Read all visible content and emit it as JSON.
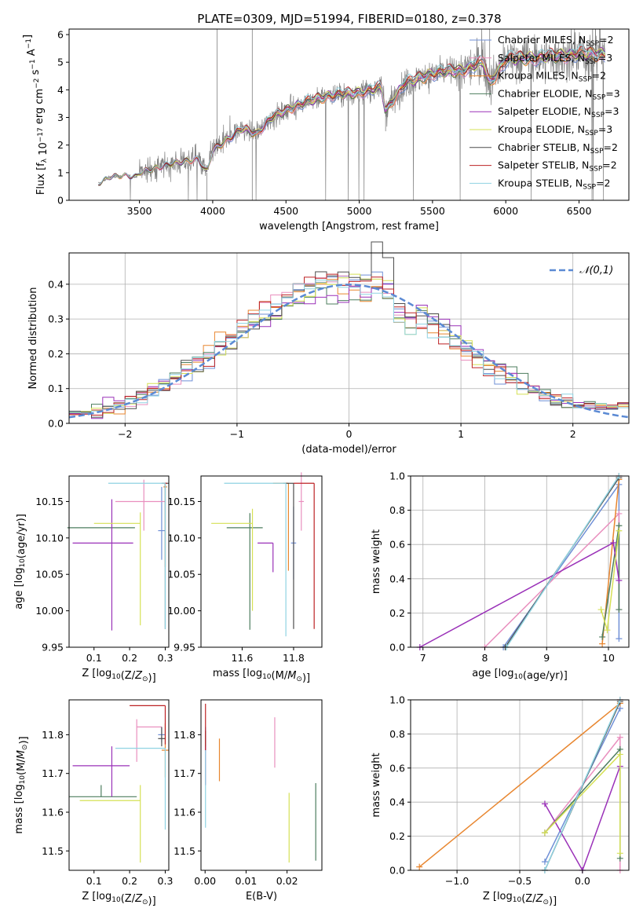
{
  "title": "PLATE=0309, MJD=51994, FIBERID=0180, z=0.378",
  "legend": [
    {
      "label": "Chabrier MILES, N",
      "sub": "SSP",
      "tail": "=2",
      "color": "#6f8fd6"
    },
    {
      "label": "Salpeter MILES, N",
      "sub": "SSP",
      "tail": "=3",
      "color": "#e98fbe"
    },
    {
      "label": "Kroupa MILES, N",
      "sub": "SSP",
      "tail": "=2",
      "color": "#e8862f"
    },
    {
      "label": "Chabrier ELODIE, N",
      "sub": "SSP",
      "tail": "=3",
      "color": "#4c7d5e"
    },
    {
      "label": "Salpeter ELODIE, N",
      "sub": "SSP",
      "tail": "=3",
      "color": "#9a31b8"
    },
    {
      "label": "Kroupa ELODIE, N",
      "sub": "SSP",
      "tail": "=3",
      "color": "#d5e055"
    },
    {
      "label": "Chabrier STELIB, N",
      "sub": "SSP",
      "tail": "=2",
      "color": "#4d4d4d"
    },
    {
      "label": "Salpeter STELIB, N",
      "sub": "SSP",
      "tail": "=2",
      "color": "#bd2225"
    },
    {
      "label": "Kroupa STELIB, N",
      "sub": "SSP",
      "tail": "=2",
      "color": "#8fd3e2"
    }
  ],
  "chart_data": [
    {
      "type": "line",
      "id": "spectrum",
      "xlabel": "wavelength [Angstrom, rest frame]",
      "ylabel": "Flux [f_λ 10^-17 erg cm^-2 s^-1 A^-1]",
      "xlim": [
        3020,
        6840
      ],
      "ylim": [
        0,
        6.2
      ],
      "xticks": [
        3500,
        4000,
        4500,
        5000,
        5500,
        6000,
        6500
      ],
      "yticks": [
        0,
        1,
        2,
        3,
        4,
        5,
        6
      ],
      "grid": false,
      "data_color": "#808080",
      "data_range": [
        3220,
        6680
      ],
      "continuum": [
        [
          3220,
          0.6
        ],
        [
          3300,
          0.85
        ],
        [
          3400,
          0.9
        ],
        [
          3480,
          0.85
        ],
        [
          3500,
          1.0
        ],
        [
          3700,
          1.3
        ],
        [
          3900,
          1.5
        ],
        [
          3960,
          1.0
        ],
        [
          4000,
          1.8
        ],
        [
          4200,
          2.6
        ],
        [
          4300,
          2.4
        ],
        [
          4400,
          3.0
        ],
        [
          4600,
          3.5
        ],
        [
          4800,
          3.8
        ],
        [
          5000,
          3.9
        ],
        [
          5150,
          4.1
        ],
        [
          5180,
          3.2
        ],
        [
          5300,
          4.2
        ],
        [
          5500,
          4.6
        ],
        [
          5700,
          4.7
        ],
        [
          5850,
          5.0
        ],
        [
          5890,
          4.2
        ],
        [
          6000,
          5.1
        ],
        [
          6300,
          5.2
        ],
        [
          6500,
          5.3
        ],
        [
          6680,
          5.3
        ]
      ]
    },
    {
      "type": "histogram",
      "id": "residuals",
      "xlabel": "(data-model)/error",
      "ylabel": "Normed distribution",
      "xlim": [
        -2.5,
        2.5
      ],
      "ylim": [
        0,
        0.49
      ],
      "xticks": [
        -2,
        -1,
        0,
        1,
        2
      ],
      "yticks": [
        0.0,
        0.1,
        0.2,
        0.3,
        0.4
      ],
      "grid": true,
      "bin_width": 0.1,
      "curve_label": "𝒩(0,1)",
      "curve_color": "#5b8ad4",
      "legend_position": "upper right"
    },
    {
      "type": "scatter",
      "id": "age-vs-z",
      "xlabel": "Z [log10(Z/Z☉)]",
      "ylabel": "age  [log10(age/yr)]",
      "xlim": [
        0.03,
        0.31
      ],
      "ylim": [
        9.95,
        10.185
      ],
      "xticks": [
        0.1,
        0.2,
        0.3
      ],
      "yticks": [
        9.95,
        10.0,
        10.05,
        10.1,
        10.15
      ],
      "points": [
        {
          "x": 0.29,
          "y": 10.11,
          "xerr": 0.01,
          "yerr": [
            0.04,
            0.06
          ],
          "color": "#6f8fd6"
        },
        {
          "x": 0.24,
          "y": 10.15,
          "xerr": [
            0.08,
            0.06
          ],
          "yerr": [
            0.04,
            0.03
          ],
          "color": "#e98fbe"
        },
        {
          "x": 0.3,
          "y": 10.17,
          "xerr": 0.005,
          "yerr": [
            0.11,
            0.005
          ],
          "color": "#e8862f"
        },
        {
          "x": 0.12,
          "y": 10.114,
          "xerr": 0.095,
          "yerr": 0.0,
          "color": "#4c7d5e"
        },
        {
          "x": 0.15,
          "y": 10.093,
          "xerr": [
            0.11,
            0.06
          ],
          "yerr": [
            0.12,
            0.06
          ],
          "color": "#9a31b8"
        },
        {
          "x": 0.23,
          "y": 10.12,
          "xerr": [
            0.13,
            0.0
          ],
          "yerr": [
            0.14,
            0.015
          ],
          "color": "#d5e055"
        },
        {
          "x": 0.3,
          "y": 10.175,
          "xerr": 0.01,
          "yerr": [
            0.2,
            0.0
          ],
          "color": "#4d4d4d"
        },
        {
          "x": 0.3,
          "y": 10.175,
          "xerr": 0.005,
          "yerr": [
            0.005,
            0.0
          ],
          "color": "#bd2225"
        },
        {
          "x": 0.3,
          "y": 10.175,
          "xerr": [
            0.16,
            0.0
          ],
          "yerr": [
            0.2,
            0.0
          ],
          "color": "#8fd3e2"
        }
      ]
    },
    {
      "type": "scatter",
      "id": "age-vs-mass",
      "xlabel": "mass [log10(M/M☉)]",
      "ylabel": "",
      "xlim": [
        11.44,
        11.91
      ],
      "ylim": [
        9.95,
        10.185
      ],
      "xticks": [
        11.6,
        11.8
      ],
      "yticks": [
        9.95,
        10.0,
        10.05,
        10.1,
        10.15
      ],
      "points": [
        {
          "x": 11.8,
          "y": 10.093,
          "xerr": 0.01,
          "yerr": 0.05,
          "color": "#6f8fd6"
        },
        {
          "x": 11.83,
          "y": 10.15,
          "xerr": 0.01,
          "yerr": 0.04,
          "color": "#e98fbe"
        },
        {
          "x": 11.78,
          "y": 10.175,
          "xerr": [
            0.06,
            0.0
          ],
          "yerr": [
            0.12,
            0.0
          ],
          "color": "#e8862f"
        },
        {
          "x": 11.63,
          "y": 10.114,
          "xerr": [
            0.09,
            0.05
          ],
          "yerr": [
            0.14,
            0.02
          ],
          "color": "#4c7d5e"
        },
        {
          "x": 11.72,
          "y": 10.093,
          "xerr": [
            0.06,
            0.0
          ],
          "yerr": [
            0.04,
            0.0
          ],
          "color": "#9a31b8"
        },
        {
          "x": 11.64,
          "y": 10.12,
          "xerr": [
            0.16,
            0.0
          ],
          "yerr": [
            0.12,
            0.02
          ],
          "color": "#d5e055"
        },
        {
          "x": 11.8,
          "y": 10.175,
          "xerr": [
            0.04,
            0.0
          ],
          "yerr": [
            0.2,
            0.0
          ],
          "color": "#4d4d4d"
        },
        {
          "x": 11.88,
          "y": 10.175,
          "xerr": [
            0.08,
            0.0
          ],
          "yerr": [
            0.2,
            0.0
          ],
          "color": "#bd2225"
        },
        {
          "x": 11.77,
          "y": 10.175,
          "xerr": [
            0.24,
            0.0
          ],
          "yerr": [
            0.21,
            0.0
          ],
          "color": "#8fd3e2"
        }
      ]
    },
    {
      "type": "line",
      "id": "weight-vs-age",
      "xlabel": "age  [log10(age/yr)]",
      "ylabel": "mass weight",
      "xlim": [
        6.8,
        10.33
      ],
      "ylim": [
        0,
        1.0
      ],
      "xticks": [
        7,
        8,
        9,
        10
      ],
      "yticks": [
        0.0,
        0.2,
        0.4,
        0.6,
        0.8,
        1.0
      ],
      "grid": true,
      "series": [
        {
          "color": "#6f8fd6",
          "x": [
            8.3,
            10.17,
            10.17
          ],
          "y": [
            0.0,
            0.95,
            0.05
          ]
        },
        {
          "color": "#e98fbe",
          "x": [
            8.0,
            10.17,
            10.17
          ],
          "y": [
            0.0,
            0.78,
            0.22
          ]
        },
        {
          "color": "#e8862f",
          "x": [
            9.9,
            10.17
          ],
          "y": [
            0.02,
            0.98
          ]
        },
        {
          "color": "#4c7d5e",
          "x": [
            9.9,
            10.17,
            10.17
          ],
          "y": [
            0.06,
            0.71,
            0.22
          ]
        },
        {
          "color": "#9a31b8",
          "x": [
            6.95,
            10.08,
            10.17
          ],
          "y": [
            0.0,
            0.61,
            0.39
          ]
        },
        {
          "color": "#d5e055",
          "x": [
            9.88,
            9.98,
            10.17
          ],
          "y": [
            0.22,
            0.1,
            0.68
          ]
        },
        {
          "color": "#4d4d4d",
          "x": [
            8.33,
            10.17
          ],
          "y": [
            0.0,
            0.99
          ]
        },
        {
          "color": "#bd2225",
          "x": [
            10.17
          ],
          "y": [
            1.0
          ]
        },
        {
          "color": "#8fd3e2",
          "x": [
            8.35,
            10.17
          ],
          "y": [
            0.0,
            1.0
          ]
        }
      ]
    },
    {
      "type": "scatter",
      "id": "mass-vs-z",
      "xlabel": "Z [log10(Z/Z☉)]",
      "ylabel": "mass [log10(M/M☉)]",
      "xlim": [
        0.03,
        0.31
      ],
      "ylim": [
        11.45,
        11.89
      ],
      "xticks": [
        0.1,
        0.2,
        0.3
      ],
      "yticks": [
        11.5,
        11.6,
        11.7,
        11.8
      ],
      "points": [
        {
          "x": 0.29,
          "y": 11.8,
          "xerr": 0.01,
          "yerr": 0.02,
          "color": "#6f8fd6"
        },
        {
          "x": 0.22,
          "y": 11.82,
          "xerr": [
            0.0,
            0.07
          ],
          "yerr": [
            0.09,
            0.02
          ],
          "color": "#e98fbe"
        },
        {
          "x": 0.3,
          "y": 11.76,
          "xerr": 0.01,
          "yerr": 0.07,
          "color": "#e8862f"
        },
        {
          "x": 0.12,
          "y": 11.64,
          "xerr": [
            0.09,
            0.1
          ],
          "yerr": [
            0.0,
            0.03
          ],
          "color": "#4c7d5e"
        },
        {
          "x": 0.15,
          "y": 11.72,
          "xerr": [
            0.11,
            0.05
          ],
          "yerr": [
            0.08,
            0.05
          ],
          "color": "#9a31b8"
        },
        {
          "x": 0.23,
          "y": 11.63,
          "xerr": [
            0.17,
            0.0
          ],
          "yerr": [
            0.16,
            0.04
          ],
          "color": "#d5e055"
        },
        {
          "x": 0.29,
          "y": 11.79,
          "xerr": 0.01,
          "yerr": [
            0.02,
            0.03
          ],
          "color": "#4d4d4d"
        },
        {
          "x": 0.3,
          "y": 11.875,
          "xerr": [
            0.1,
            0.0
          ],
          "yerr": [
            0.1,
            0.0
          ],
          "color": "#bd2225"
        },
        {
          "x": 0.3,
          "y": 11.765,
          "xerr": [
            0.14,
            0.0
          ],
          "yerr": [
            0.21,
            0.0
          ],
          "color": "#8fd3e2"
        }
      ]
    },
    {
      "type": "scatter",
      "id": "mass-vs-ebv",
      "xlabel": "E(B-V)",
      "ylabel": "",
      "xlim": [
        -0.001,
        0.0285
      ],
      "ylim": [
        11.45,
        11.89
      ],
      "xticks": [
        0.0,
        0.01,
        0.02
      ],
      "yticks": [
        11.5,
        11.6,
        11.7,
        11.8
      ],
      "points": [
        {
          "x": 0.0001,
          "y": 11.79,
          "yerr": 0.03,
          "color": "#6f8fd6"
        },
        {
          "x": 0.017,
          "y": 11.78,
          "yerr": 0.065,
          "color": "#e98fbe"
        },
        {
          "x": 0.0035,
          "y": 11.735,
          "yerr": 0.055,
          "color": "#e8862f"
        },
        {
          "x": 0.027,
          "y": 11.575,
          "yerr": 0.1,
          "color": "#4c7d5e"
        },
        {
          "x": 0.0001,
          "y": 11.72,
          "yerr": 0.05,
          "color": "#9a31b8"
        },
        {
          "x": 0.0205,
          "y": 11.56,
          "yerr": 0.09,
          "color": "#d5e055"
        },
        {
          "x": 0.0001,
          "y": 11.79,
          "yerr": 0.02,
          "color": "#4d4d4d"
        },
        {
          "x": 0.0001,
          "y": 11.82,
          "yerr": 0.06,
          "color": "#bd2225"
        },
        {
          "x": 0.0001,
          "y": 11.66,
          "yerr": 0.1,
          "color": "#8fd3e2"
        }
      ]
    },
    {
      "type": "line",
      "id": "weight-vs-z",
      "xlabel": "Z [log10(Z/Z☉)]",
      "ylabel": "mass weight",
      "xlim": [
        -1.37,
        0.37
      ],
      "ylim": [
        0,
        1.0
      ],
      "xticks": [
        -1.0,
        -0.5,
        0.0
      ],
      "yticks": [
        0.0,
        0.2,
        0.4,
        0.6,
        0.8,
        1.0
      ],
      "grid": true,
      "series": [
        {
          "color": "#6f8fd6",
          "x": [
            -0.3,
            0.3
          ],
          "y": [
            0.05,
            0.95
          ]
        },
        {
          "color": "#e98fbe",
          "x": [
            -0.3,
            0.3,
            0.3
          ],
          "y": [
            0.22,
            0.78,
            0.0
          ]
        },
        {
          "color": "#e8862f",
          "x": [
            -1.3,
            0.3
          ],
          "y": [
            0.02,
            0.98
          ]
        },
        {
          "color": "#4c7d5e",
          "x": [
            -0.3,
            0.3,
            0.3
          ],
          "y": [
            0.22,
            0.71,
            0.07
          ]
        },
        {
          "color": "#9a31b8",
          "x": [
            -0.3,
            0.0,
            0.3
          ],
          "y": [
            0.39,
            0.0,
            0.61
          ]
        },
        {
          "color": "#d5e055",
          "x": [
            -0.3,
            0.3,
            0.3
          ],
          "y": [
            0.22,
            0.68,
            0.1
          ]
        },
        {
          "color": "#4d4d4d",
          "x": [
            -0.3,
            0.3
          ],
          "y": [
            0.0,
            0.99
          ]
        },
        {
          "color": "#bd2225",
          "x": [
            0.3
          ],
          "y": [
            1.0
          ]
        },
        {
          "color": "#8fd3e2",
          "x": [
            -0.3,
            0.3
          ],
          "y": [
            0.0,
            1.0
          ]
        }
      ]
    }
  ]
}
